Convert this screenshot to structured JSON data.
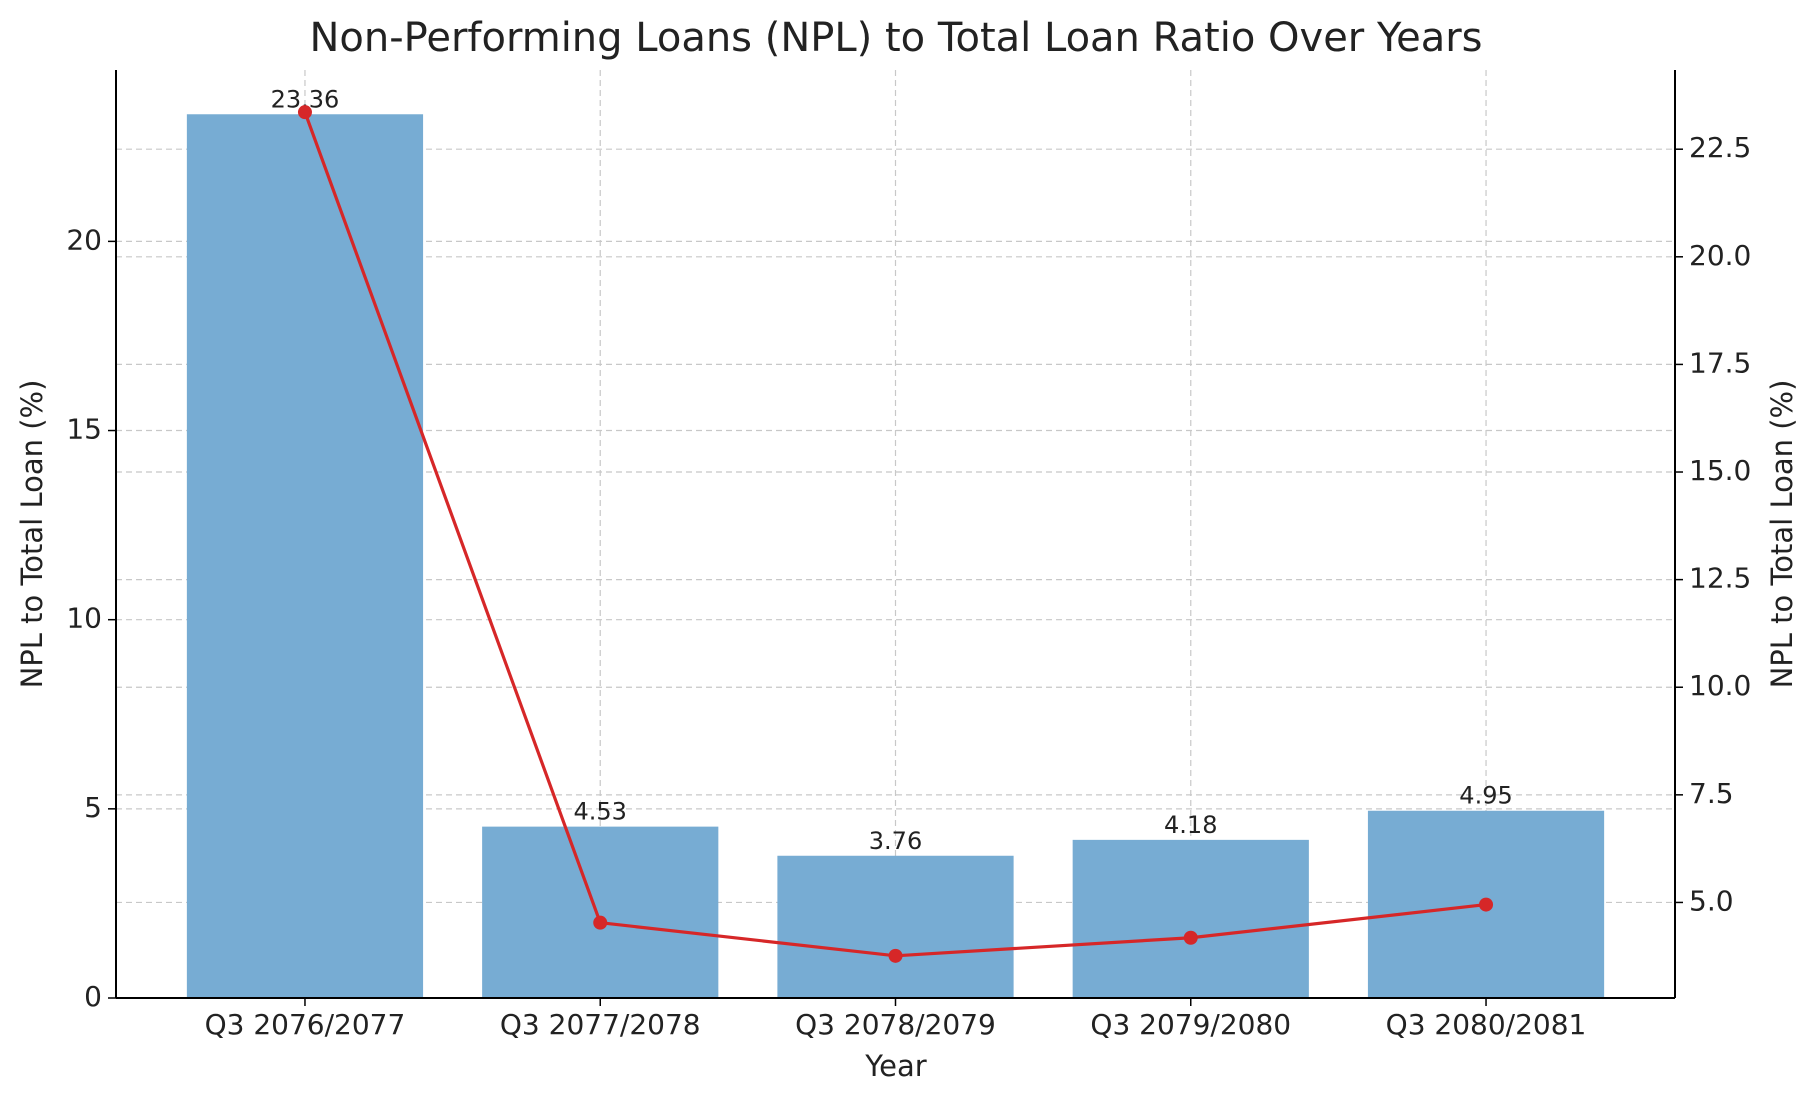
{
  "chart_data": {
    "type": "bar_line",
    "title": "Non-Performing Loans (NPL) to Total Loan Ratio Over Years",
    "x_label": "Year",
    "y_label": "NPL to Total Loan (%)",
    "y2_label": "NPL to Total Loan (%)",
    "categories": [
      "Q3 2076/2077",
      "Q3 2077/2078",
      "Q3 2078/2079",
      "Q3 2079/2080",
      "Q3 2080/2081"
    ],
    "series": [
      {
        "type": "bar",
        "color": "#77acd3",
        "values": [
          23.36,
          4.53,
          3.76,
          4.18,
          4.95
        ]
      },
      {
        "type": "line",
        "axis": "y2",
        "color": "#d62728",
        "values": [
          23.36,
          4.53,
          3.76,
          4.18,
          4.95
        ]
      }
    ],
    "ylim": [
      0,
      24.53
    ],
    "yticks": [
      0,
      5,
      10,
      15,
      20
    ],
    "y_color": "#1f77b4",
    "y2lim": [
      2.78,
      24.34
    ],
    "y2ticks": [
      {
        "value": 5,
        "label": "5.0"
      },
      7.5,
      {
        "value": 10,
        "label": "10.0"
      },
      12.5,
      {
        "value": 15,
        "label": "15.0"
      },
      17.5,
      {
        "value": 20,
        "label": "20.0"
      },
      22.5
    ],
    "y2_color": "#d62728",
    "grid": true
  }
}
